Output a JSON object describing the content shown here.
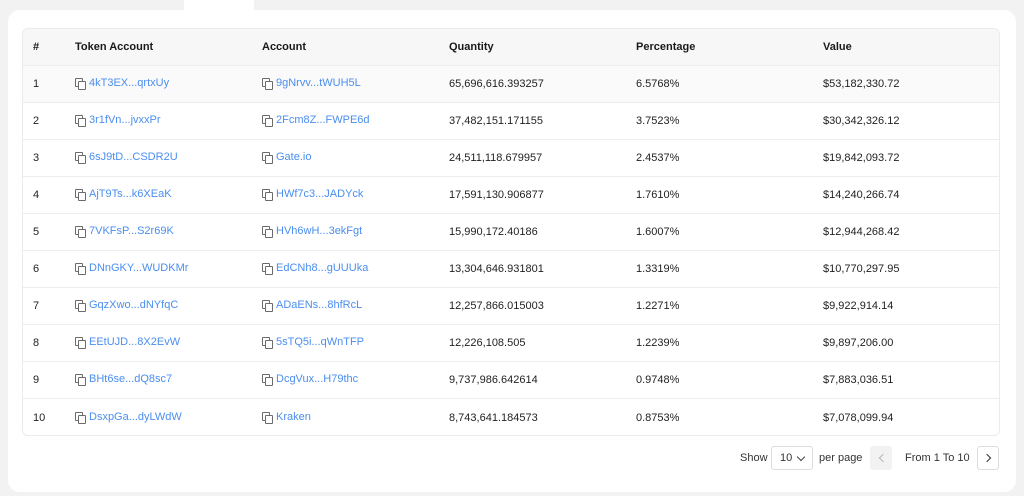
{
  "table": {
    "headers": [
      "#",
      "Token Account",
      "Account",
      "Quantity",
      "Percentage",
      "Value"
    ],
    "rows": [
      {
        "rank": "1",
        "token_account": "4kT3EX...qrtxUy",
        "account": "9gNrvv...tWUH5L",
        "quantity": "65,696,616.393257",
        "percentage": "6.5768%",
        "value": "$53,182,330.72"
      },
      {
        "rank": "2",
        "token_account": "3r1fVn...jvxxPr",
        "account": "2Fcm8Z...FWPE6d",
        "quantity": "37,482,151.171155",
        "percentage": "3.7523%",
        "value": "$30,342,326.12"
      },
      {
        "rank": "3",
        "token_account": "6sJ9tD...CSDR2U",
        "account": "Gate.io",
        "quantity": "24,511,118.679957",
        "percentage": "2.4537%",
        "value": "$19,842,093.72"
      },
      {
        "rank": "4",
        "token_account": "AjT9Ts...k6XEaK",
        "account": "HWf7c3...JADYck",
        "quantity": "17,591,130.906877",
        "percentage": "1.7610%",
        "value": "$14,240,266.74"
      },
      {
        "rank": "5",
        "token_account": "7VKFsP...S2r69K",
        "account": "HVh6wH...3ekFgt",
        "quantity": "15,990,172.40186",
        "percentage": "1.6007%",
        "value": "$12,944,268.42"
      },
      {
        "rank": "6",
        "token_account": "DNnGKY...WUDKMr",
        "account": "EdCNh8...gUUUka",
        "quantity": "13,304,646.931801",
        "percentage": "1.3319%",
        "value": "$10,770,297.95"
      },
      {
        "rank": "7",
        "token_account": "GqzXwo...dNYfqC",
        "account": "ADaENs...8hfRcL",
        "quantity": "12,257,866.015003",
        "percentage": "1.2271%",
        "value": "$9,922,914.14"
      },
      {
        "rank": "8",
        "token_account": "EEtUJD...8X2EvW",
        "account": "5sTQ5i...qWnTFP",
        "quantity": "12,226,108.505",
        "percentage": "1.2239%",
        "value": "$9,897,206.00"
      },
      {
        "rank": "9",
        "token_account": "BHt6se...dQ8sc7",
        "account": "DcgVux...H79thc",
        "quantity": "9,737,986.642614",
        "percentage": "0.9748%",
        "value": "$7,883,036.51"
      },
      {
        "rank": "10",
        "token_account": "DsxpGa...dyLWdW",
        "account": "Kraken",
        "quantity": "8,743,641.184573",
        "percentage": "0.8753%",
        "value": "$7,078,099.94"
      }
    ]
  },
  "pagination": {
    "show_label": "Show",
    "per_page_value": "10",
    "per_page_label": "per page",
    "range_label": "From 1 To 10"
  },
  "icons": {
    "copy": "copy-icon",
    "prev": "chevron-left-icon",
    "next": "chevron-right-icon",
    "dropdown": "chevron-down-icon"
  },
  "colors": {
    "link": "#4a8ef0",
    "header_bg": "#f7f7f8",
    "page_bg": "#f2f2f3"
  }
}
